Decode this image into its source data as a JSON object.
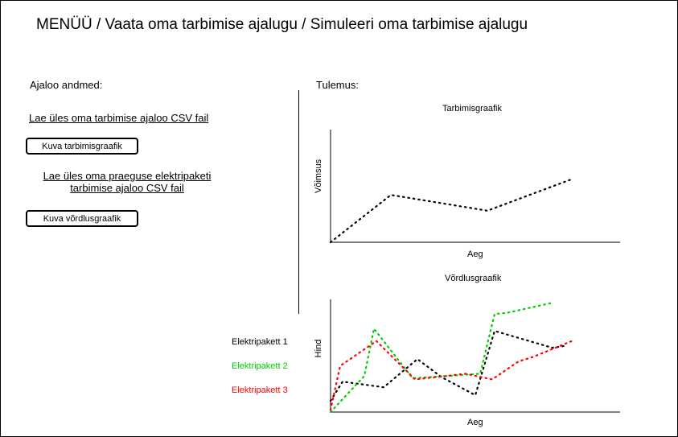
{
  "breadcrumb": "MENÜÜ / Vaata oma tarbimise ajalugu / Simuleeri oma tarbimise ajalugu",
  "left_panel": {
    "label": "Ajaloo andmed:",
    "upload_history_link": "Lae üles oma tarbimise ajaloo CSV fail",
    "show_consumption_button": "Kuva tarbimisgraafik",
    "upload_package_link_line1": "Lae üles oma praeguse elektripaketi",
    "upload_package_link_line2": "tarbimise ajaloo CSV fail",
    "show_comparison_button": "Kuva võrdlusgraafik"
  },
  "right_panel": {
    "label": "Tulemus:"
  },
  "legend": [
    {
      "label": "Elektripakett 1",
      "color": "#000000"
    },
    {
      "label": "Elektripakett 2",
      "color": "#00cc00"
    },
    {
      "label": "Elektripakett 3",
      "color": "#ff0000"
    }
  ],
  "chart_data": [
    {
      "type": "line",
      "title": "Tarbimisgraafik",
      "xlabel": "Aeg",
      "ylabel": "Võimsus",
      "line_style": "dotted",
      "grid": false,
      "series": [
        {
          "color": "#000000",
          "x": [
            0,
            0.25,
            0.65,
            1.0
          ],
          "y": [
            0,
            0.42,
            0.28,
            0.56
          ]
        }
      ],
      "xlim": [
        0,
        1.2
      ],
      "ylim": [
        0,
        1
      ]
    },
    {
      "type": "line",
      "title": "Võrdlusgraafik",
      "xlabel": "Aeg",
      "ylabel": "Hind",
      "line_style": "dotted",
      "grid": false,
      "series": [
        {
          "name": "Elektripakett 1",
          "color": "#000000",
          "x": [
            0,
            0.05,
            0.22,
            0.36,
            0.46,
            0.6,
            0.68,
            0.92,
            0.98
          ],
          "y": [
            0.1,
            0.27,
            0.22,
            0.47,
            0.31,
            0.15,
            0.72,
            0.57,
            0.59
          ]
        },
        {
          "name": "Elektripakett 2",
          "color": "#00cc00",
          "x": [
            0,
            0.14,
            0.18,
            0.34,
            0.62,
            0.68,
            0.73,
            0.92
          ],
          "y": [
            0,
            0.32,
            0.74,
            0.3,
            0.34,
            0.87,
            0.88,
            0.97
          ]
        },
        {
          "name": "Elektripakett 3",
          "color": "#ff0000",
          "x": [
            0,
            0.04,
            0.19,
            0.35,
            0.48,
            0.56,
            0.67,
            0.78,
            0.84,
            1.0
          ],
          "y": [
            0.02,
            0.41,
            0.63,
            0.29,
            0.32,
            0.34,
            0.29,
            0.45,
            0.49,
            0.63
          ]
        }
      ],
      "xlim": [
        0,
        1.2
      ],
      "ylim": [
        0,
        1
      ]
    }
  ]
}
